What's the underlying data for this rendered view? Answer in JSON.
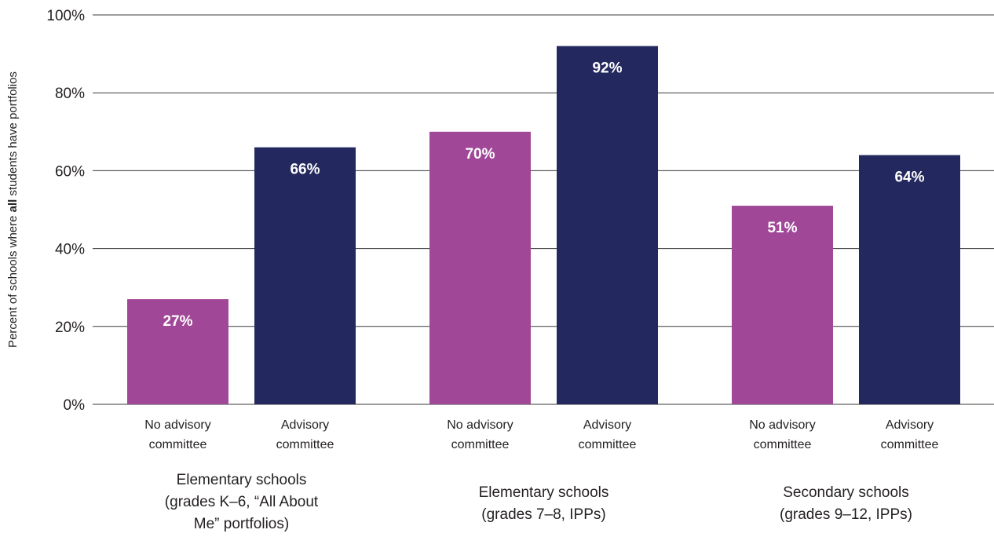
{
  "chart_data": {
    "type": "bar",
    "title": "",
    "ylabel_parts": [
      {
        "text": "Percent of schools where ",
        "bold": false
      },
      {
        "text": "all",
        "bold": true
      },
      {
        "text": " students have portfolios",
        "bold": false
      }
    ],
    "ylim": [
      0,
      100
    ],
    "yticks": [
      {
        "value": 0,
        "label": "0%"
      },
      {
        "value": 20,
        "label": "20%"
      },
      {
        "value": 40,
        "label": "40%"
      },
      {
        "value": 60,
        "label": "60%"
      },
      {
        "value": 80,
        "label": "80%"
      },
      {
        "value": 100,
        "label": "100%"
      }
    ],
    "grid": true,
    "colors": {
      "No advisory committee": "#a04897",
      "Advisory committee": "#23295e"
    },
    "groups": [
      {
        "label_lines": [
          "Elementary schools",
          "(grades K–6, “All About",
          "Me” portfolios)"
        ],
        "bars": [
          {
            "category": "No advisory committee",
            "label_lines": [
              "No advisory",
              "committee"
            ],
            "value": 27,
            "value_label": "27%"
          },
          {
            "category": "Advisory committee",
            "label_lines": [
              "Advisory",
              "committee"
            ],
            "value": 66,
            "value_label": "66%"
          }
        ]
      },
      {
        "label_lines": [
          "Elementary schools",
          "(grades 7–8, IPPs)"
        ],
        "bars": [
          {
            "category": "No advisory committee",
            "label_lines": [
              "No advisory",
              "committee"
            ],
            "value": 70,
            "value_label": "70%"
          },
          {
            "category": "Advisory committee",
            "label_lines": [
              "Advisory",
              "committee"
            ],
            "value": 92,
            "value_label": "92%"
          }
        ]
      },
      {
        "label_lines": [
          "Secondary schools",
          "(grades 9–12, IPPs)"
        ],
        "bars": [
          {
            "category": "No advisory committee",
            "label_lines": [
              "No advisory",
              "committee"
            ],
            "value": 51,
            "value_label": "51%"
          },
          {
            "category": "Advisory committee",
            "label_lines": [
              "Advisory",
              "committee"
            ],
            "value": 64,
            "value_label": "64%"
          }
        ]
      }
    ]
  }
}
